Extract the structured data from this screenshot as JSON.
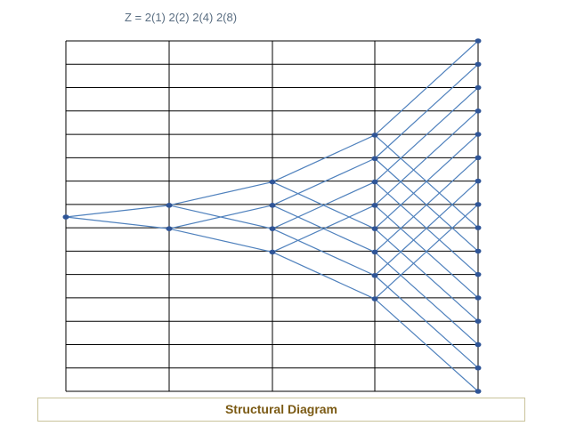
{
  "title": "Z  =  2(1) 2(2) 2(4) 2(8)",
  "caption": "Structural Diagram"
}
